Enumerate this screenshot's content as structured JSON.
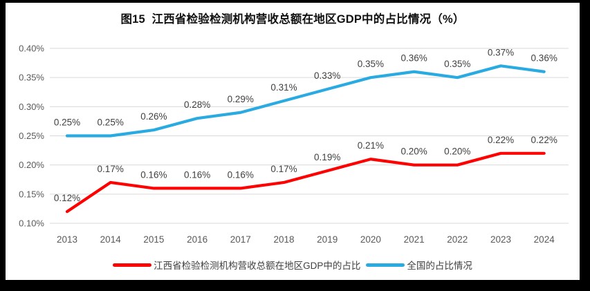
{
  "frame": {
    "background": "#000000",
    "card_background": "#FFFFFF"
  },
  "chart_data": {
    "type": "line",
    "title": "图15  江西省检验检测机构营收总额在地区GDP中的占比情况（%）",
    "categories": [
      "2013",
      "2014",
      "2015",
      "2016",
      "2017",
      "2018",
      "2019",
      "2020",
      "2021",
      "2022",
      "2023",
      "2024"
    ],
    "series": [
      {
        "name": "江西省检验检测机构营收总额在地区GDP中的占比",
        "color": "#FF0000",
        "values": [
          0.12,
          0.17,
          0.16,
          0.16,
          0.16,
          0.17,
          0.19,
          0.21,
          0.2,
          0.2,
          0.22,
          0.22
        ],
        "labels": [
          "0.12%",
          "0.17%",
          "0.16%",
          "0.16%",
          "0.16%",
          "0.17%",
          "0.19%",
          "0.21%",
          "0.20%",
          "0.20%",
          "0.22%",
          "0.22%"
        ]
      },
      {
        "name": "全国的占比情况",
        "color": "#29ABE2",
        "values": [
          0.25,
          0.25,
          0.26,
          0.28,
          0.29,
          0.31,
          0.33,
          0.35,
          0.36,
          0.35,
          0.37,
          0.36
        ],
        "labels": [
          "0.25%",
          "0.25%",
          "0.26%",
          "0.28%",
          "0.29%",
          "0.31%",
          "0.33%",
          "0.35%",
          "0.36%",
          "0.35%",
          "0.37%",
          "0.36%"
        ]
      }
    ],
    "ylim": [
      0.1,
      0.4
    ],
    "ytick_labels": [
      "0.10%",
      "0.15%",
      "0.20%",
      "0.25%",
      "0.30%",
      "0.35%",
      "0.40%"
    ],
    "xlabel": "",
    "ylabel": "",
    "grid": true,
    "legend_position": "bottom",
    "gridline_color": "#D9D9D9",
    "axis_label_color": "#595959",
    "data_label_color": "#404040"
  }
}
